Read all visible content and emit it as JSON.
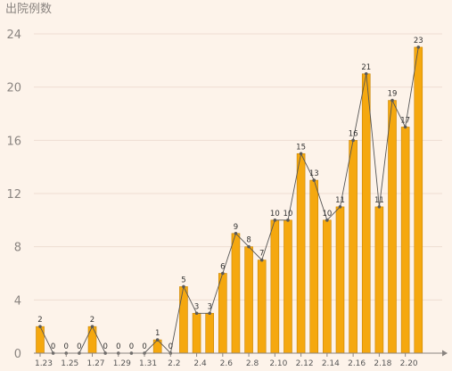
{
  "chart_data": {
    "type": "bar",
    "ylabel": "出院例数",
    "ylim": [
      0,
      24
    ],
    "yticks": [
      0,
      4,
      8,
      12,
      16,
      20,
      24
    ],
    "grid": true,
    "categories": [
      "1.23",
      "1.24",
      "1.25",
      "1.26",
      "1.27",
      "1.28",
      "1.29",
      "1.30",
      "1.31",
      "2.1",
      "2.2",
      "2.3",
      "2.4",
      "2.5",
      "2.6",
      "2.7",
      "2.8",
      "2.9",
      "2.10",
      "2.11",
      "2.12",
      "2.13",
      "2.14",
      "2.15",
      "2.16",
      "2.17",
      "2.18",
      "2.19",
      "2.20",
      "2.21"
    ],
    "xtick_labels": [
      "1.23",
      "1.25",
      "1.27",
      "1.29",
      "1.31",
      "2.2",
      "2.4",
      "2.6",
      "2.8",
      "2.10",
      "2.12",
      "2.14",
      "2.16",
      "2.18",
      "2.20"
    ],
    "values": [
      2,
      0,
      0,
      0,
      2,
      0,
      0,
      0,
      0,
      1,
      0,
      5,
      3,
      3,
      6,
      9,
      8,
      7,
      10,
      10,
      15,
      13,
      10,
      11,
      16,
      21,
      11,
      19,
      17,
      23
    ],
    "overlay_line": true,
    "colors": {
      "bar": "#f5a80f",
      "bar_edge": "#c98400",
      "line": "#555555",
      "marker": "#5a5a5a",
      "grid": "#eeddd2",
      "axis": "#8a8480",
      "background": "#fdf3ea"
    }
  }
}
